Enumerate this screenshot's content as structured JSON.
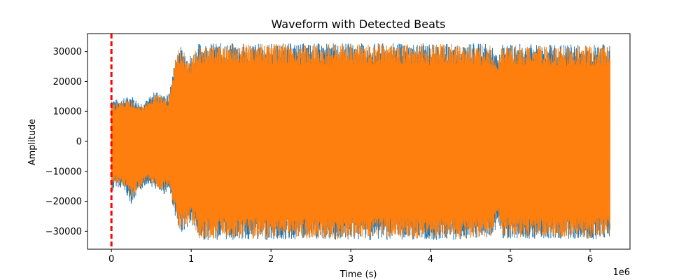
{
  "chart_data": {
    "type": "line",
    "title": "Waveform with Detected Beats",
    "xlabel": "Time (s)",
    "ylabel": "Amplitude",
    "x_offset_label": "1e6",
    "xlim": [
      -0.3,
      6.5
    ],
    "ylim": [
      -36000,
      36000
    ],
    "x_ticks": [
      0,
      1,
      2,
      3,
      4,
      5,
      6
    ],
    "x_tick_labels": [
      "0",
      "1",
      "2",
      "3",
      "4",
      "5",
      "6"
    ],
    "y_ticks": [
      -30000,
      -20000,
      -10000,
      0,
      10000,
      20000,
      30000
    ],
    "y_tick_labels": [
      "−30000",
      "−20000",
      "−10000",
      "0",
      "10000",
      "20000",
      "30000"
    ],
    "grid": false,
    "series": [
      {
        "color": "#1f77b4",
        "envelope_x": [
          0.0,
          0.05,
          0.15,
          0.25,
          0.35,
          0.45,
          0.55,
          0.65,
          0.72,
          0.8,
          0.84,
          0.9,
          1.0,
          1.1,
          1.5,
          2.0,
          2.5,
          3.0,
          3.5,
          4.0,
          4.5,
          4.75,
          4.85,
          4.9,
          5.0,
          5.5,
          6.0,
          6.25
        ],
        "envelope_upper": [
          15000,
          14000,
          14500,
          15500,
          13000,
          14000,
          17000,
          15500,
          16000,
          28000,
          32500,
          31000,
          29000,
          33000,
          32800,
          32800,
          32800,
          32800,
          32800,
          32800,
          32800,
          32500,
          28000,
          32500,
          32500,
          32500,
          32500,
          32500
        ],
        "envelope_lower": [
          -18000,
          -15000,
          -16000,
          -21000,
          -17000,
          -14000,
          -16000,
          -18000,
          -16000,
          -25000,
          -31000,
          -30000,
          -28000,
          -33000,
          -33000,
          -33000,
          -33000,
          -33000,
          -33000,
          -33000,
          -33000,
          -32500,
          -28000,
          -32500,
          -32500,
          -32500,
          -33000,
          -32000
        ]
      },
      {
        "color": "#ff7f0e",
        "envelope_x": [
          0.0,
          0.05,
          0.15,
          0.25,
          0.35,
          0.45,
          0.55,
          0.65,
          0.72,
          0.8,
          0.84,
          0.9,
          1.0,
          1.1,
          1.5,
          2.0,
          2.5,
          3.0,
          3.5,
          4.0,
          4.5,
          4.75,
          4.85,
          4.9,
          5.0,
          5.5,
          6.0,
          6.25
        ],
        "envelope_upper": [
          14000,
          13000,
          13500,
          14500,
          12000,
          13000,
          16000,
          14500,
          15000,
          27000,
          32500,
          30000,
          28000,
          32500,
          32500,
          32500,
          32500,
          32500,
          32500,
          32500,
          32500,
          32000,
          27000,
          32000,
          32000,
          32000,
          32000,
          32000
        ],
        "envelope_lower": [
          -17000,
          -14000,
          -15000,
          -19000,
          -16000,
          -13000,
          -15000,
          -17000,
          -15000,
          -24000,
          -30000,
          -29000,
          -27000,
          -32500,
          -32500,
          -32500,
          -32500,
          -32500,
          -32500,
          -32500,
          -32500,
          -32000,
          -27000,
          -32000,
          -32000,
          -32000,
          -32500,
          -31500
        ]
      }
    ],
    "beat_markers": {
      "color": "#ff0000",
      "style": "dashed",
      "x": [
        0.0
      ]
    }
  }
}
